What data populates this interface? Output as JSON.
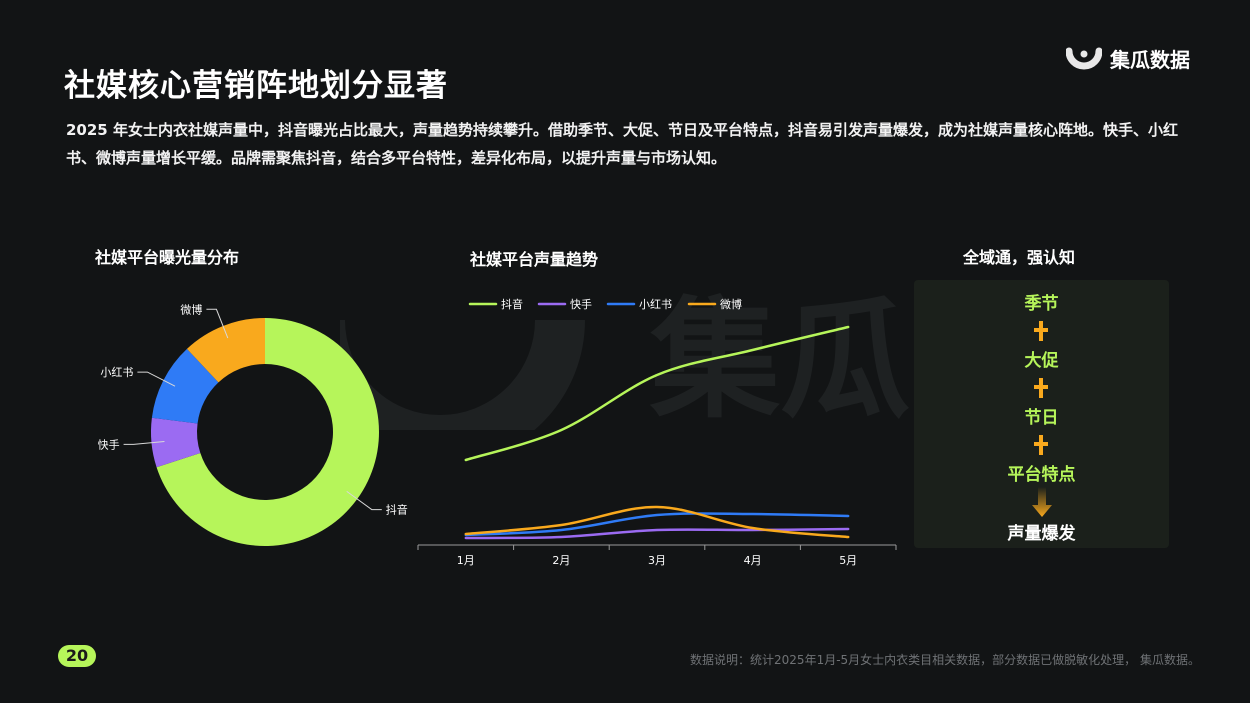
{
  "header": {
    "title": "社媒核心营销阵地划分显著",
    "logo_text": "集瓜数据",
    "description": "2025 年女士内衣社媒声量中，抖音曝光占比最大，声量趋势持续攀升。借助季节、大促、节日及平台特点，抖音易引发声量爆发，成为社媒声量核心阵地。快手、小红书、微博声量增长平缓。品牌需聚焦抖音，结合多平台特性，差异化布局，以提升声量与市场认知。"
  },
  "watermark_text": "集瓜",
  "colors": {
    "background": "#121415",
    "accent": "#b6f55a",
    "douyin": "#b6f55a",
    "kuaishou": "#9b6bf2",
    "xiaohongshu": "#2f7bf6",
    "weibo": "#f9a91d"
  },
  "chart_data": [
    {
      "type": "pie",
      "title": "社媒平台曝光量分布",
      "labels": [
        "抖音",
        "快手",
        "小红书",
        "微博"
      ],
      "values": [
        70,
        7,
        11,
        12
      ],
      "colors": [
        "#b6f55a",
        "#9b6bf2",
        "#2f7bf6",
        "#f9a91d"
      ]
    },
    {
      "type": "line",
      "title": "社媒平台声量趋势",
      "categories": [
        "1月",
        "2月",
        "3月",
        "4月",
        "5月"
      ],
      "ylim": [
        0,
        230
      ],
      "legend_position": "top-left",
      "series": [
        {
          "name": "抖音",
          "color": "#b6f55a",
          "values": [
            85,
            115,
            170,
            195,
            218
          ]
        },
        {
          "name": "快手",
          "color": "#9b6bf2",
          "values": [
            7,
            8,
            15,
            15,
            16
          ]
        },
        {
          "name": "小红书",
          "color": "#2f7bf6",
          "values": [
            10,
            15,
            30,
            31,
            29
          ]
        },
        {
          "name": "微博",
          "color": "#f9a91d",
          "values": [
            11,
            20,
            38,
            17,
            8
          ]
        }
      ]
    }
  ],
  "flow": {
    "title": "全域通，强认知",
    "steps": [
      "季节",
      "大促",
      "节日",
      "平台特点"
    ],
    "result": "声量爆发"
  },
  "footer": {
    "page_number": "20",
    "note": "数据说明：统计2025年1月-5月女士内衣类目相关数据，部分数据已做脱敏化处理， 集瓜数据。"
  }
}
